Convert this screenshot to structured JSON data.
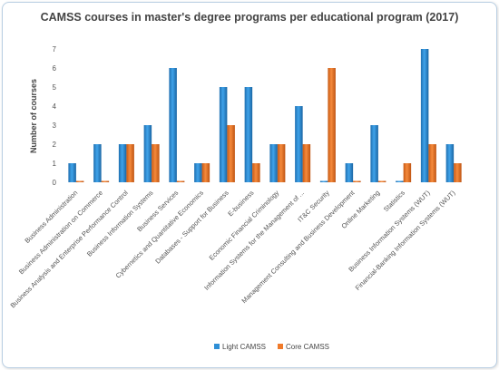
{
  "chart_data": {
    "type": "bar",
    "title": "CAMSS courses in master's degree programs per educational program (2017)",
    "ylabel": "Number of courses",
    "xlabel": "",
    "ylim": [
      0,
      7
    ],
    "yticks": [
      0,
      1,
      2,
      3,
      4,
      5,
      6,
      7
    ],
    "grid": false,
    "legend_position": "bottom",
    "categories": [
      "Business Administration",
      "Business Administration on Commerce",
      "Business Analysis and Enterprise Performance Control",
      "Business Information Systems",
      "Business Services",
      "Cybernetics and Quantitative Economics",
      "Databases - Support for Business",
      "E-business",
      "Economic Financial Criminology",
      "Information Systems for the Management of ...",
      "IT&C Security",
      "Management Consulting and Business Development",
      "Online Marketing",
      "Statistics",
      "Business Information Systems (WUT)",
      "Financial-Banking Information Systems (WUT)"
    ],
    "series": [
      {
        "name": "Light CAMSS",
        "color": "#2e8fd6",
        "values": [
          1,
          2,
          2,
          3,
          6,
          1,
          5,
          5,
          2,
          4,
          0,
          1,
          3,
          0,
          7,
          2
        ]
      },
      {
        "name": "Core CAMSS",
        "color": "#f07a2a",
        "values": [
          0,
          0,
          2,
          2,
          0,
          1,
          3,
          1,
          2,
          2,
          6,
          0,
          0,
          1,
          2,
          1
        ]
      }
    ]
  }
}
